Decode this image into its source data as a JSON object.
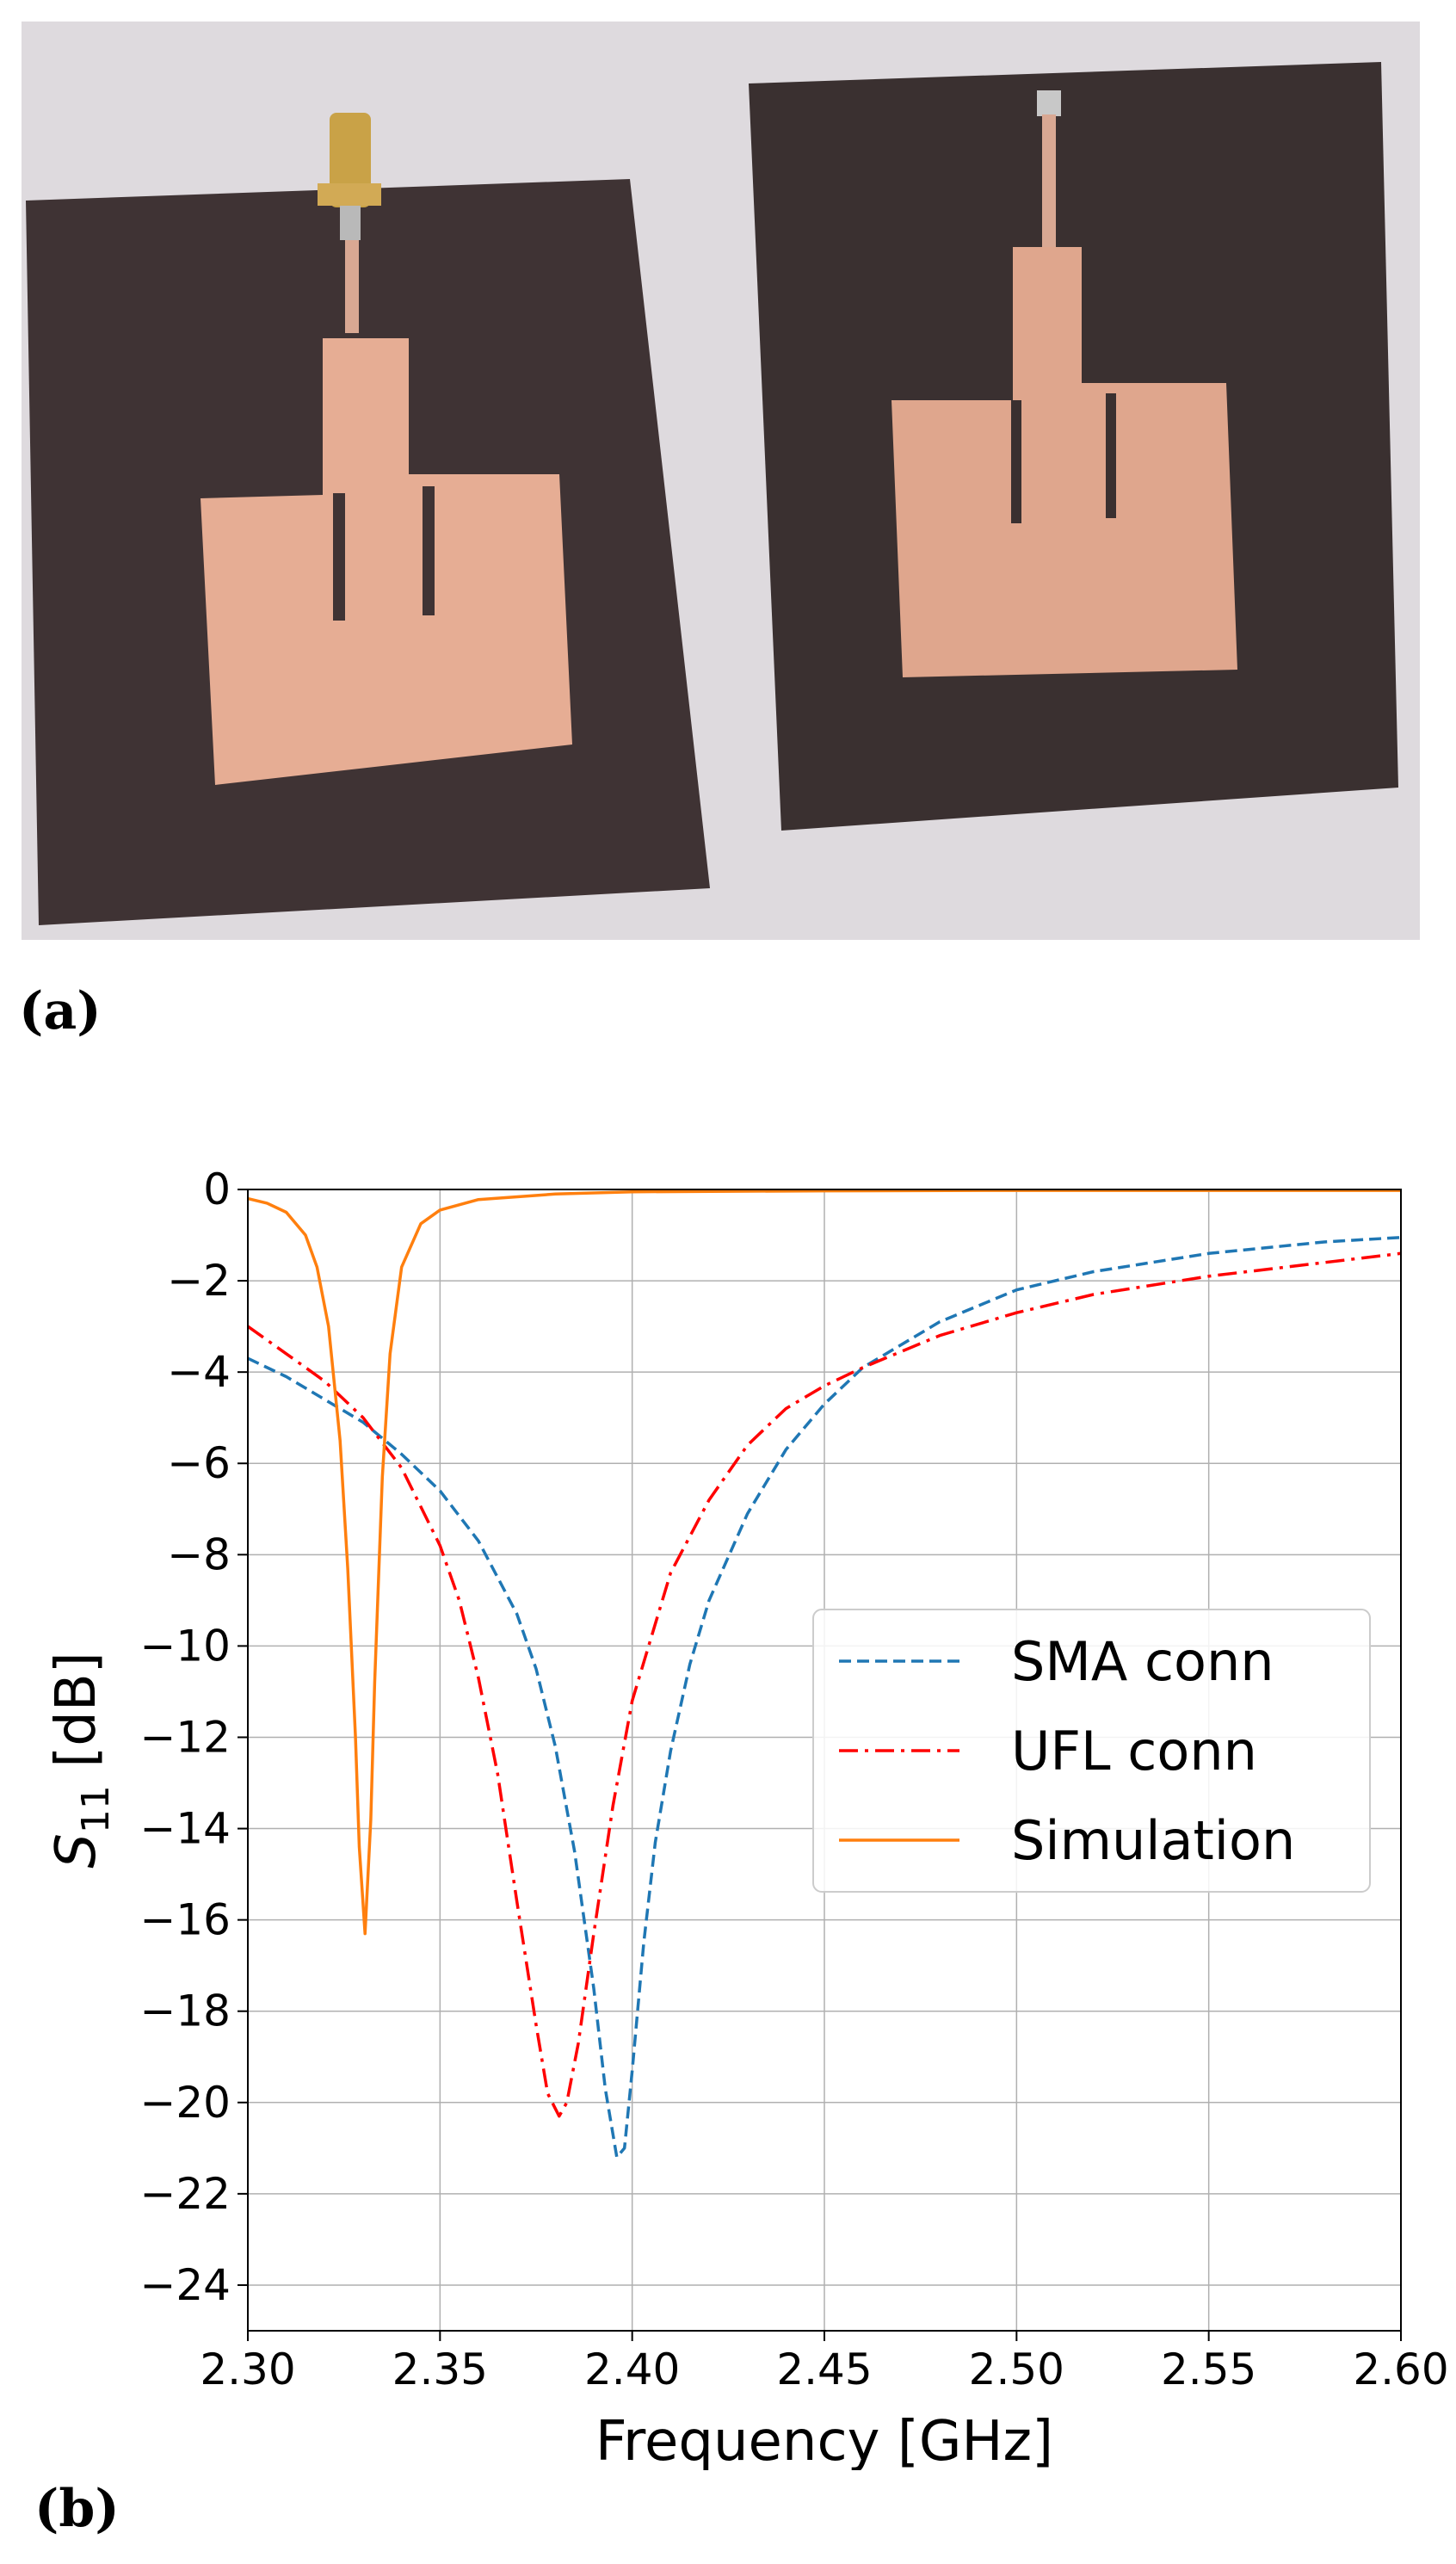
{
  "figure": {
    "panel_a_label": "(a)",
    "panel_b_label": "(b)"
  },
  "colors": {
    "sma": "#1f77b4",
    "ufl": "#ff0000",
    "simulation": "#ff7f0e",
    "grid": "#b0b0b0",
    "board": "#3f3334",
    "copper": "#e4a98f",
    "background": "#dcd8dc"
  },
  "chart_data": {
    "type": "line",
    "title": "",
    "xlabel": "Frequency [GHz]",
    "ylabel_main": "S",
    "ylabel_sub": "11",
    "ylabel_unit": " [dB]",
    "xlim": [
      2.3,
      2.6
    ],
    "ylim": [
      -25,
      0
    ],
    "grid": true,
    "legend_position": "center-right",
    "xticks": [
      2.3,
      2.35,
      2.4,
      2.45,
      2.5,
      2.55,
      2.6
    ],
    "xtick_labels": [
      "2.30",
      "2.35",
      "2.40",
      "2.45",
      "2.50",
      "2.55",
      "2.60"
    ],
    "yticks": [
      0,
      -2,
      -4,
      -6,
      -8,
      -10,
      -12,
      -14,
      -16,
      -18,
      -20,
      -22,
      -24
    ],
    "ytick_labels": [
      "0",
      "−2",
      "−4",
      "−6",
      "−8",
      "−10",
      "−12",
      "−14",
      "−16",
      "−18",
      "−20",
      "−22",
      "−24"
    ],
    "series": [
      {
        "name": "SMA conn",
        "style": "dashed",
        "color": "#1f77b4",
        "x": [
          2.3,
          2.31,
          2.32,
          2.33,
          2.34,
          2.35,
          2.36,
          2.37,
          2.375,
          2.38,
          2.385,
          2.39,
          2.393,
          2.396,
          2.398,
          2.4,
          2.403,
          2.406,
          2.41,
          2.415,
          2.42,
          2.43,
          2.44,
          2.45,
          2.46,
          2.48,
          2.5,
          2.52,
          2.55,
          2.58,
          2.6
        ],
        "values": [
          -3.7,
          -4.1,
          -4.6,
          -5.1,
          -5.8,
          -6.6,
          -7.7,
          -9.3,
          -10.5,
          -12.2,
          -14.5,
          -17.5,
          -19.7,
          -21.2,
          -21.0,
          -19.3,
          -16.5,
          -14.3,
          -12.3,
          -10.4,
          -9.0,
          -7.1,
          -5.7,
          -4.7,
          -3.9,
          -2.9,
          -2.2,
          -1.8,
          -1.4,
          -1.15,
          -1.05
        ]
      },
      {
        "name": "UFL conn",
        "style": "dashdot",
        "color": "#ff0000",
        "x": [
          2.3,
          2.31,
          2.32,
          2.33,
          2.34,
          2.35,
          2.355,
          2.36,
          2.365,
          2.37,
          2.375,
          2.378,
          2.381,
          2.383,
          2.386,
          2.39,
          2.395,
          2.4,
          2.41,
          2.42,
          2.43,
          2.44,
          2.45,
          2.46,
          2.48,
          2.5,
          2.52,
          2.55,
          2.58,
          2.6
        ],
        "values": [
          -3.0,
          -3.6,
          -4.2,
          -5.0,
          -6.1,
          -7.8,
          -9.0,
          -10.7,
          -12.8,
          -15.6,
          -18.3,
          -19.8,
          -20.3,
          -20.0,
          -18.7,
          -16.3,
          -13.5,
          -11.2,
          -8.4,
          -6.8,
          -5.6,
          -4.8,
          -4.3,
          -3.9,
          -3.2,
          -2.7,
          -2.3,
          -1.9,
          -1.6,
          -1.4
        ]
      },
      {
        "name": "Simulation",
        "style": "solid",
        "color": "#ff7f0e",
        "x": [
          2.3,
          2.305,
          2.31,
          2.315,
          2.318,
          2.321,
          2.324,
          2.326,
          2.328,
          2.329,
          2.3305,
          2.332,
          2.333,
          2.335,
          2.337,
          2.34,
          2.345,
          2.35,
          2.36,
          2.38,
          2.4,
          2.45,
          2.5,
          2.55,
          2.6
        ],
        "values": [
          -0.2,
          -0.3,
          -0.5,
          -1.0,
          -1.7,
          -3.0,
          -5.5,
          -8.3,
          -12.0,
          -14.4,
          -16.3,
          -13.8,
          -10.8,
          -6.3,
          -3.6,
          -1.7,
          -0.75,
          -0.45,
          -0.22,
          -0.1,
          -0.05,
          -0.03,
          -0.02,
          -0.02,
          -0.02
        ]
      }
    ]
  }
}
